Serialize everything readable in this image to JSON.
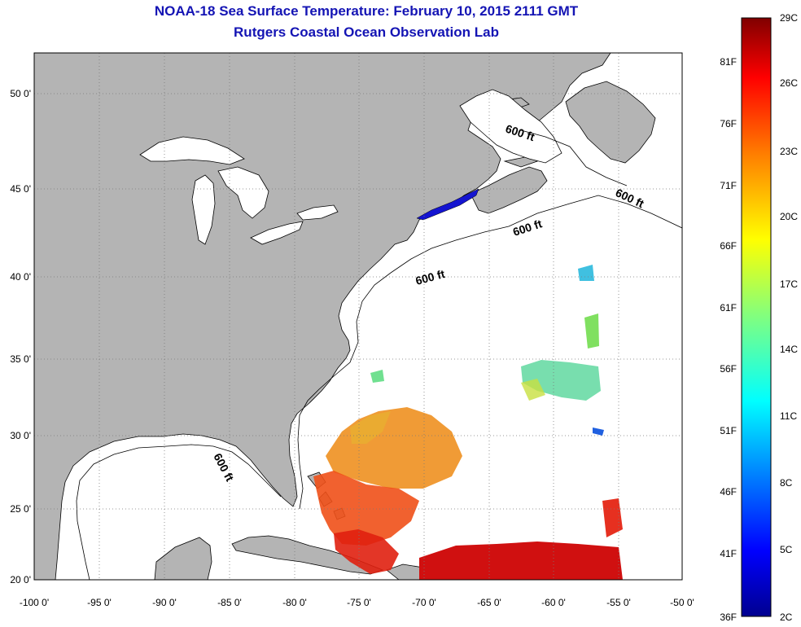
{
  "title": {
    "line1": "NOAA-18 Sea Surface Temperature:  February 10, 2015 2111 GMT",
    "line2": "Rutgers Coastal Ocean Observation Lab"
  },
  "map": {
    "lon_ticks": [
      "-100 0'",
      "-95 0'",
      "-90 0'",
      "-85 0'",
      "-80 0'",
      "-75 0'",
      "-70 0'",
      "-65 0'",
      "-60 0'",
      "-55 0'",
      "-50 0'"
    ],
    "lat_ticks": [
      "50 0'",
      "45 0'",
      "40 0'",
      "35 0'",
      "30 0'",
      "25 0'",
      "20 0'"
    ],
    "contour_labels": [
      "600 ft",
      "600 ft",
      "600 ft",
      "600 ft",
      "600 ft"
    ],
    "colors": {
      "land": "#b4b4b4",
      "water": "#ffffff",
      "grid": "#7a7a7a"
    }
  },
  "colorbar": {
    "celsius_labels": [
      "29C",
      "26C",
      "23C",
      "20C",
      "17C",
      "14C",
      "11C",
      "8C",
      "5C",
      "2C"
    ],
    "fahrenheit_labels": [
      "81F",
      "76F",
      "71F",
      "66F",
      "61F",
      "56F",
      "51F",
      "46F",
      "41F",
      "36F"
    ],
    "colors": [
      "#800000",
      "#ff0000",
      "#ff8000",
      "#ffff00",
      "#80ff80",
      "#00ffff",
      "#0080ff",
      "#0000ff",
      "#00008f"
    ]
  }
}
